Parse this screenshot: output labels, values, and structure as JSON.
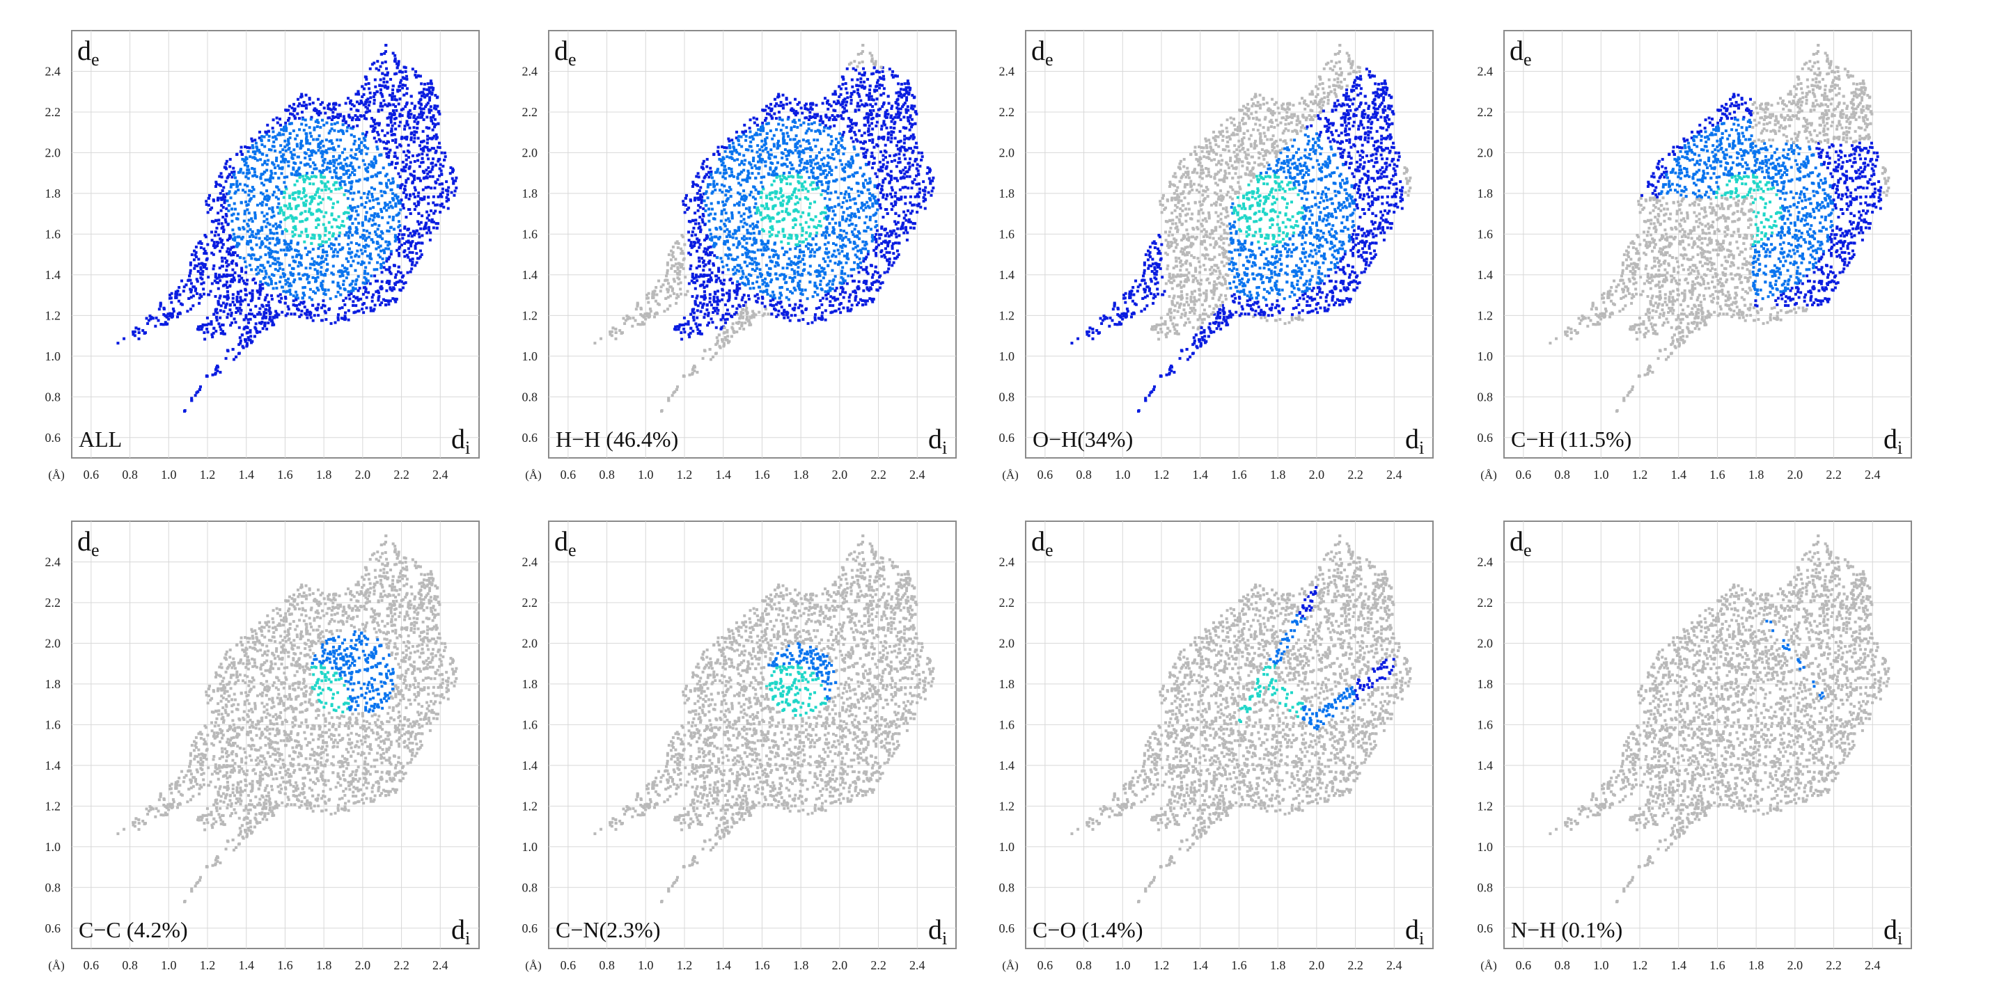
{
  "chart_data": {
    "type": "scatter",
    "description_style": "2D fingerprint plots",
    "x_axis": {
      "label": "d",
      "label_sub": "i",
      "unit": "(Å)",
      "ticks": [
        0.6,
        0.8,
        1.0,
        1.2,
        1.4,
        1.6,
        1.8,
        2.0,
        2.2,
        2.4
      ],
      "tick_labels_shown": [
        "0.6",
        "0.8",
        "1.0",
        "1.2",
        "1.4",
        "1.6",
        "1.8",
        "2.0",
        "2.2",
        "2.4"
      ],
      "range": [
        0.5,
        2.6
      ]
    },
    "y_axis": {
      "label": "d",
      "label_sub": "e",
      "ticks": [
        0.6,
        0.8,
        1.0,
        1.2,
        1.4,
        1.6,
        1.8,
        2.0,
        2.2,
        2.4
      ],
      "tick_labels_shown": [
        "0.6",
        "0.8",
        "1.0",
        "1.2",
        "1.4",
        "1.6",
        "1.8",
        "2.0",
        "2.2",
        "2.4"
      ],
      "range": [
        0.5,
        2.6
      ]
    },
    "grid": true,
    "colors": {
      "background_points": "#b9b9b9",
      "highlight_low": "#0a1de0",
      "highlight_mid": "#0a74ee",
      "highlight_high": "#1fd6c8",
      "grid": "#d8d8d8",
      "frame": "#8a8a8a"
    },
    "panels": [
      {
        "label": "ALL",
        "highlight": "all"
      },
      {
        "label": "H−H (46.4%)",
        "highlight": "hh",
        "percent": 46.4
      },
      {
        "label": "O−H(34%)",
        "highlight": "oh",
        "percent": 34
      },
      {
        "label": "C−H (11.5%)",
        "highlight": "ch",
        "percent": 11.5
      },
      {
        "label": "C−C (4.2%)",
        "highlight": "cc",
        "percent": 4.2
      },
      {
        "label": "C−N(2.3%)",
        "highlight": "cn",
        "percent": 2.3
      },
      {
        "label": "C−O (1.4%)",
        "highlight": "co",
        "percent": 1.4
      },
      {
        "label": "N−H (0.1%)",
        "highlight": "nh",
        "percent": 0.1
      }
    ]
  }
}
